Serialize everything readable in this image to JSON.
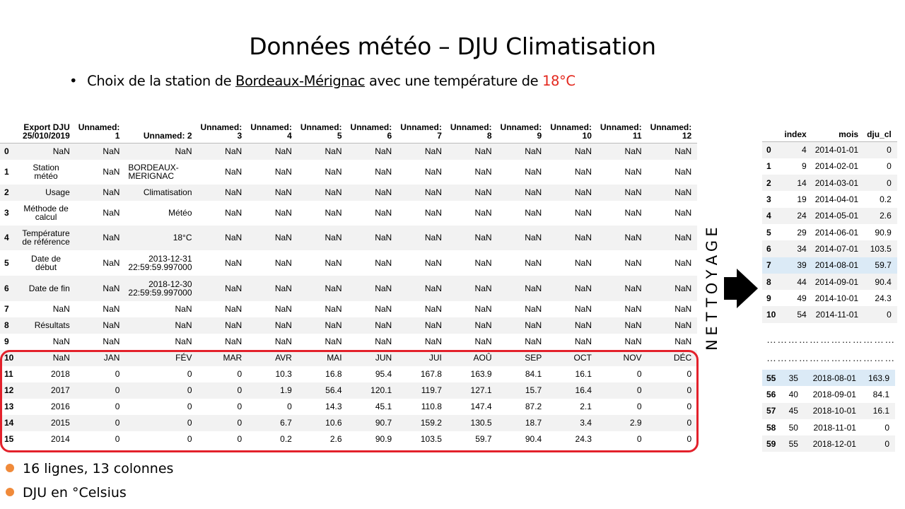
{
  "title": "Données météo – DJU Climatisation",
  "subtitle": {
    "bullet": "•",
    "prefix": "Choix de la station de",
    "station": "Bordeaux-Mérignac",
    "middle": "avec une température de",
    "temperature": "18°C"
  },
  "main_table": {
    "columns": [
      "",
      "Export DJU 25/010/2019",
      "Unnamed: 1",
      "Unnamed: 2",
      "Unnamed: 3",
      "Unnamed: 4",
      "Unnamed: 5",
      "Unnamed: 6",
      "Unnamed: 7",
      "Unnamed: 8",
      "Unnamed: 9",
      "Unnamed: 10",
      "Unnamed: 11",
      "Unnamed: 12"
    ],
    "rows": [
      [
        "0",
        "NaN",
        "NaN",
        "NaN",
        "NaN",
        "NaN",
        "NaN",
        "NaN",
        "NaN",
        "NaN",
        "NaN",
        "NaN",
        "NaN",
        "NaN"
      ],
      [
        "1",
        "Station météo",
        "NaN",
        "BORDEAUX-MERIGNAC",
        "NaN",
        "NaN",
        "NaN",
        "NaN",
        "NaN",
        "NaN",
        "NaN",
        "NaN",
        "NaN",
        "NaN"
      ],
      [
        "2",
        "Usage",
        "NaN",
        "Climatisation",
        "NaN",
        "NaN",
        "NaN",
        "NaN",
        "NaN",
        "NaN",
        "NaN",
        "NaN",
        "NaN",
        "NaN"
      ],
      [
        "3",
        "Méthode de calcul",
        "NaN",
        "Météo",
        "NaN",
        "NaN",
        "NaN",
        "NaN",
        "NaN",
        "NaN",
        "NaN",
        "NaN",
        "NaN",
        "NaN"
      ],
      [
        "4",
        "Température de référence",
        "NaN",
        "18°C",
        "NaN",
        "NaN",
        "NaN",
        "NaN",
        "NaN",
        "NaN",
        "NaN",
        "NaN",
        "NaN",
        "NaN"
      ],
      [
        "5",
        "Date de début",
        "NaN",
        "2013-12-31 22:59:59.997000",
        "NaN",
        "NaN",
        "NaN",
        "NaN",
        "NaN",
        "NaN",
        "NaN",
        "NaN",
        "NaN",
        "NaN"
      ],
      [
        "6",
        "Date de fin",
        "NaN",
        "2018-12-30 22:59:59.997000",
        "NaN",
        "NaN",
        "NaN",
        "NaN",
        "NaN",
        "NaN",
        "NaN",
        "NaN",
        "NaN",
        "NaN"
      ],
      [
        "7",
        "NaN",
        "NaN",
        "NaN",
        "NaN",
        "NaN",
        "NaN",
        "NaN",
        "NaN",
        "NaN",
        "NaN",
        "NaN",
        "NaN",
        "NaN"
      ],
      [
        "8",
        "Résultats",
        "NaN",
        "NaN",
        "NaN",
        "NaN",
        "NaN",
        "NaN",
        "NaN",
        "NaN",
        "NaN",
        "NaN",
        "NaN",
        "NaN"
      ],
      [
        "9",
        "NaN",
        "NaN",
        "NaN",
        "NaN",
        "NaN",
        "NaN",
        "NaN",
        "NaN",
        "NaN",
        "NaN",
        "NaN",
        "NaN",
        "NaN"
      ],
      [
        "10",
        "NaN",
        "JAN",
        "FÉV",
        "MAR",
        "AVR",
        "MAI",
        "JUN",
        "JUI",
        "AOÛ",
        "SEP",
        "OCT",
        "NOV",
        "DÉC"
      ],
      [
        "11",
        "2018",
        "0",
        "0",
        "0",
        "10.3",
        "16.8",
        "95.4",
        "167.8",
        "163.9",
        "84.1",
        "16.1",
        "0",
        "0"
      ],
      [
        "12",
        "2017",
        "0",
        "0",
        "0",
        "1.9",
        "56.4",
        "120.1",
        "119.7",
        "127.1",
        "15.7",
        "16.4",
        "0",
        "0"
      ],
      [
        "13",
        "2016",
        "0",
        "0",
        "0",
        "0",
        "14.3",
        "45.1",
        "110.8",
        "147.4",
        "87.2",
        "2.1",
        "0",
        "0"
      ],
      [
        "14",
        "2015",
        "0",
        "0",
        "0",
        "6.7",
        "10.6",
        "90.7",
        "159.2",
        "130.5",
        "18.7",
        "3.4",
        "2.9",
        "0"
      ],
      [
        "15",
        "2014",
        "0",
        "0",
        "0",
        "0.2",
        "2.6",
        "90.9",
        "103.5",
        "59.7",
        "90.4",
        "24.3",
        "0",
        "0"
      ]
    ]
  },
  "side_label": "NETTOYAGE",
  "clean_table": {
    "columns": [
      "",
      "index",
      "mois",
      "dju_cl"
    ],
    "rows_top": [
      [
        "0",
        "4",
        "2014-01-01",
        "0"
      ],
      [
        "1",
        "9",
        "2014-02-01",
        "0"
      ],
      [
        "2",
        "14",
        "2014-03-01",
        "0"
      ],
      [
        "3",
        "19",
        "2014-04-01",
        "0.2"
      ],
      [
        "4",
        "24",
        "2014-05-01",
        "2.6"
      ],
      [
        "5",
        "29",
        "2014-06-01",
        "90.9"
      ],
      [
        "6",
        "34",
        "2014-07-01",
        "103.5"
      ],
      [
        "7",
        "39",
        "2014-08-01",
        "59.7"
      ],
      [
        "8",
        "44",
        "2014-09-01",
        "90.4"
      ],
      [
        "9",
        "49",
        "2014-10-01",
        "24.3"
      ],
      [
        "10",
        "54",
        "2014-11-01",
        "0"
      ]
    ],
    "separator": "………………………………",
    "rows_bottom": [
      [
        "55",
        "35",
        "2018-08-01",
        "163.9"
      ],
      [
        "56",
        "40",
        "2018-09-01",
        "84.1"
      ],
      [
        "57",
        "45",
        "2018-10-01",
        "16.1"
      ],
      [
        "58",
        "50",
        "2018-11-01",
        "0"
      ],
      [
        "59",
        "55",
        "2018-12-01",
        "0"
      ]
    ]
  },
  "notes": [
    "16 lignes, 13 colonnes",
    "DJU en °Celsius"
  ],
  "colors": {
    "accent_red": "#e3261c",
    "bullet_orange": "#f08a3a",
    "highlight_blue": "#dbeaf6"
  }
}
